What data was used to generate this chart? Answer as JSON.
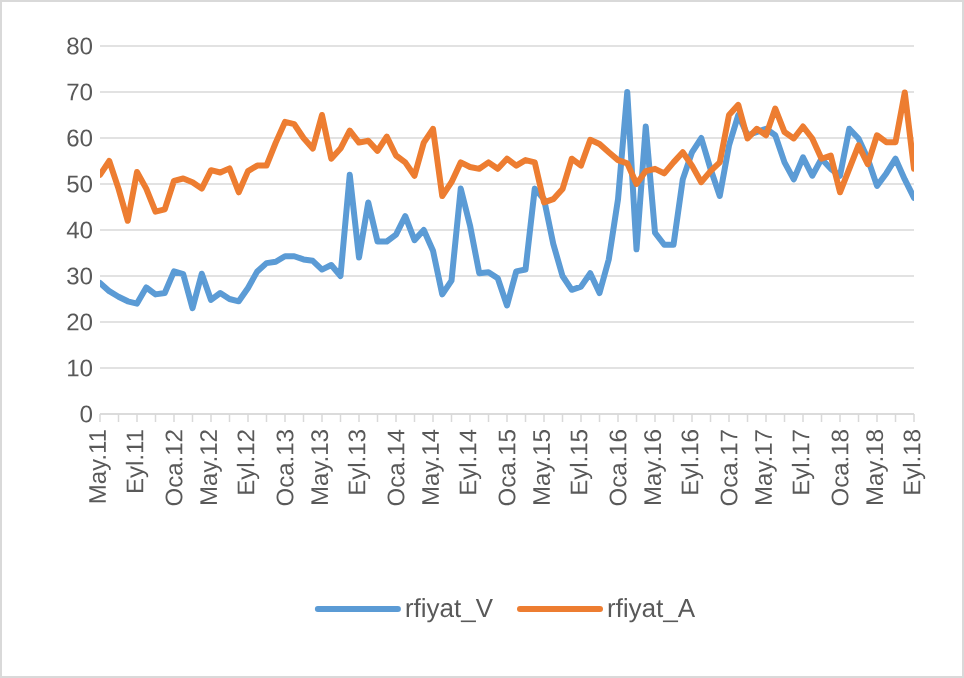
{
  "chart_data": {
    "type": "line",
    "categories": [
      "May.11",
      null,
      null,
      null,
      "Eyl.11",
      null,
      null,
      null,
      "Oca.12",
      null,
      null,
      null,
      "May.12",
      null,
      null,
      null,
      "Eyl.12",
      null,
      null,
      null,
      "Oca.13",
      null,
      null,
      null,
      "May.13",
      null,
      null,
      null,
      "Eyl.13",
      null,
      null,
      null,
      "Oca.14",
      null,
      null,
      null,
      "May.14",
      null,
      null,
      null,
      "Eyl.14",
      null,
      null,
      null,
      "Oca.15",
      null,
      null,
      null,
      "May.15",
      null,
      null,
      null,
      "Eyl.15",
      null,
      null,
      null,
      "Oca.16",
      null,
      null,
      null,
      "May.16",
      null,
      null,
      null,
      "Eyl.16",
      null,
      null,
      null,
      "Oca.17",
      null,
      null,
      null,
      "May.17",
      null,
      null,
      null,
      "Eyl.17",
      null,
      null,
      null,
      "Oca.18",
      null,
      null,
      null,
      "May.18",
      null,
      null,
      null,
      "Eyl.18"
    ],
    "series": [
      {
        "name": "rfiyat_V",
        "color": "#5b9bd5",
        "values": [
          28.5,
          26.7,
          25.5,
          24.5,
          24,
          27.5,
          26,
          26.3,
          31,
          30.4,
          23,
          30.5,
          24.8,
          26.3,
          25,
          24.5,
          27.4,
          31,
          32.8,
          33.1,
          34.3,
          34.3,
          33.6,
          33.3,
          31.4,
          32.4,
          30,
          52,
          34,
          46,
          37.5,
          37.5,
          39,
          43,
          37.8,
          40,
          35.5,
          26,
          29,
          49,
          41,
          30.6,
          30.8,
          29.5,
          23.6,
          31,
          31.4,
          49,
          46.7,
          37,
          30,
          27,
          27.7,
          30.6,
          26.3,
          33.6,
          46.7,
          70,
          35.8,
          62.5,
          39.4,
          36.8,
          36.8,
          51,
          56.9,
          60,
          53.3,
          47.4,
          58.4,
          65,
          60.6,
          61.3,
          62,
          60.6,
          54.7,
          51,
          55.8,
          51.8,
          55.5,
          53.3,
          51.8,
          62,
          59.9,
          55.5,
          49.6,
          52.3,
          55.5,
          51,
          47
        ]
      },
      {
        "name": "rfiyat_A",
        "color": "#ed7d31",
        "values": [
          52,
          55,
          49,
          42,
          52.6,
          49,
          44,
          44.5,
          50.7,
          51.2,
          50.4,
          49,
          53,
          52.5,
          53.4,
          48.2,
          52.8,
          54,
          54,
          59,
          63.5,
          63,
          60,
          57.7,
          65,
          55.5,
          57.7,
          61.6,
          59,
          59.4,
          57.2,
          60.3,
          56.2,
          54.7,
          51.8,
          59,
          62,
          47.4,
          50.4,
          54.7,
          53.7,
          53.3,
          54.7,
          53.3,
          55.5,
          54,
          55.2,
          54.7,
          46,
          46.7,
          48.9,
          55.5,
          54,
          59.6,
          58.7,
          56.9,
          55.2,
          54.5,
          50,
          52.8,
          53.3,
          52.3,
          54.7,
          56.9,
          54,
          50.4,
          52.8,
          54.7,
          65,
          67.2,
          59.9,
          62,
          60.6,
          66.4,
          61.3,
          59.9,
          62.5,
          59.9,
          55.5,
          56.2,
          48.2,
          53.3,
          58.4,
          54.3,
          60.6,
          59.1,
          59.1,
          69.9,
          53.3
        ]
      }
    ],
    "ylim": [
      0,
      80
    ],
    "yticks": [
      0,
      10,
      20,
      30,
      40,
      50,
      60,
      70,
      80
    ],
    "grid": "y",
    "legend": "bottom",
    "marker": "none",
    "line_style": "solid"
  }
}
